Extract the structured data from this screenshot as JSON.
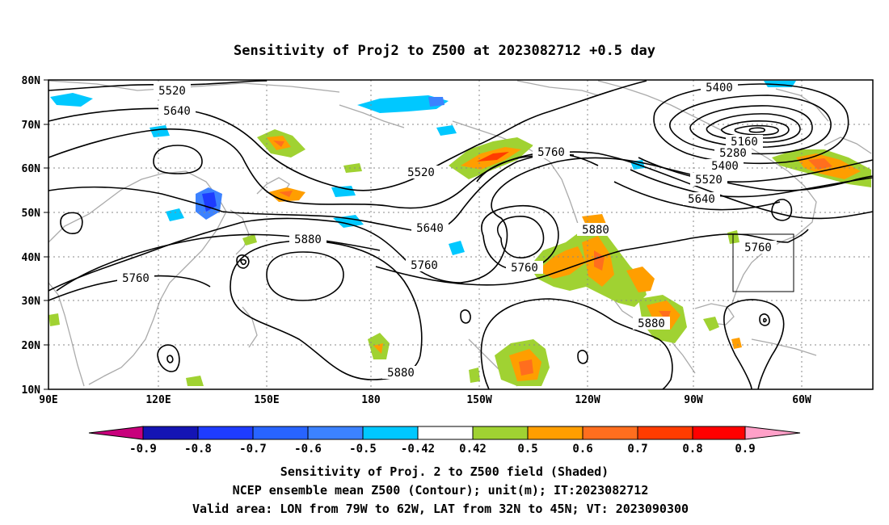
{
  "title": "Sensitivity of Proj2 to Z500 at 2023082712 +0.5 day",
  "lat_labels": [
    "80N",
    "70N",
    "60N",
    "50N",
    "40N",
    "30N",
    "20N",
    "10N"
  ],
  "lon_labels": [
    "90E",
    "120E",
    "150E",
    "180",
    "150W",
    "120W",
    "90W",
    "60W"
  ],
  "contour_labels": [
    "5520",
    "5640",
    "5400",
    "5160",
    "5280",
    "5400",
    "5520",
    "5640",
    "5760",
    "5520",
    "5640",
    "5760",
    "5880",
    "5760",
    "5880",
    "5760",
    "5880",
    "5880",
    "5760"
  ],
  "colorbar": {
    "ticks": [
      "-0.9",
      "-0.8",
      "-0.7",
      "-0.6",
      "-0.5",
      "-0.42",
      "0.42",
      "0.5",
      "0.6",
      "0.7",
      "0.8",
      "0.9"
    ],
    "colors": [
      "#c8007c",
      "#1414b4",
      "#1e3cff",
      "#2864ff",
      "#3c82ff",
      "#00c8ff",
      "#ffffff",
      "#a0d232",
      "#ff9e00",
      "#ff6e1e",
      "#ff3c00",
      "#ff0000",
      "#ffa0c8"
    ]
  },
  "captions": [
    "Sensitivity of Proj. 2 to Z500 field (Shaded)",
    "NCEP ensemble mean Z500 (Contour); unit(m); IT:2023082712",
    "Valid area: LON from 79W to 62W, LAT from 32N to 45N; VT: 2023090300"
  ]
}
